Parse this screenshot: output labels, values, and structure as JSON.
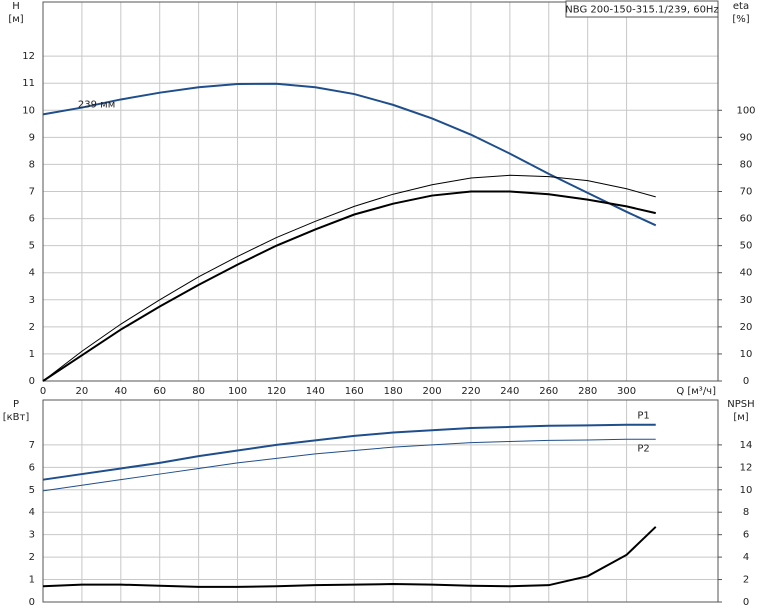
{
  "chart_data": [
    {
      "type": "line",
      "title": "NBG 200-150-315.1/239, 60Hz",
      "ylabel": [
        "H",
        "[м]"
      ],
      "y2label": [
        "eta",
        "[%]"
      ],
      "xlabel": "Q [м³/ч]",
      "x": [
        0,
        20,
        40,
        60,
        80,
        100,
        120,
        140,
        160,
        180,
        200,
        220,
        240,
        260,
        280,
        300,
        315
      ],
      "xlim": [
        0,
        347
      ],
      "xticks": [
        0,
        20,
        40,
        60,
        80,
        100,
        120,
        140,
        160,
        180,
        200,
        220,
        240,
        260,
        280,
        300
      ],
      "ylim": [
        0,
        14
      ],
      "yticks": [
        0,
        1,
        2,
        3,
        4,
        5,
        6,
        7,
        8,
        9,
        10,
        11,
        12
      ],
      "y2lim": [
        0,
        140
      ],
      "y2ticks": [
        0,
        10,
        20,
        30,
        40,
        50,
        60,
        70,
        80,
        90,
        100
      ],
      "grid": true,
      "series": [
        {
          "name": "239 мм",
          "color": "#1f4e8c",
          "line_width": 2,
          "values": [
            9.85,
            10.1,
            10.4,
            10.65,
            10.85,
            10.97,
            10.98,
            10.85,
            10.6,
            10.2,
            9.7,
            9.1,
            8.4,
            7.65,
            6.95,
            6.25,
            5.75
          ]
        },
        {
          "color": "#000000",
          "line_width": 1,
          "axis": "y2",
          "values": [
            0,
            11,
            21,
            30,
            38.5,
            46,
            53,
            59,
            64.5,
            69,
            72.5,
            75,
            76,
            75.5,
            74,
            71,
            68
          ]
        },
        {
          "color": "#000000",
          "line_width": 2,
          "axis": "y2",
          "values": [
            0,
            9.5,
            19,
            27.5,
            35.5,
            43,
            50,
            56,
            61.5,
            65.5,
            68.5,
            70,
            70,
            69,
            67,
            64.5,
            62
          ]
        }
      ]
    },
    {
      "type": "line",
      "ylabel": [
        "P",
        "[кВт]"
      ],
      "y2label": [
        "NPSH",
        "[м]"
      ],
      "x": [
        0,
        20,
        40,
        60,
        80,
        100,
        120,
        140,
        160,
        180,
        200,
        220,
        240,
        260,
        280,
        300,
        315
      ],
      "xlim": [
        0,
        347
      ],
      "ylim": [
        0,
        9
      ],
      "yticks": [
        0,
        1,
        2,
        3,
        4,
        5,
        6,
        7
      ],
      "y2lim": [
        0,
        18
      ],
      "y2ticks": [
        0,
        2,
        4,
        6,
        8,
        10,
        12,
        14
      ],
      "grid": true,
      "series": [
        {
          "name": "P1",
          "color": "#1f4e8c",
          "line_width": 2,
          "values": [
            5.45,
            5.7,
            5.95,
            6.2,
            6.5,
            6.75,
            7.0,
            7.2,
            7.4,
            7.55,
            7.65,
            7.75,
            7.8,
            7.85,
            7.87,
            7.9,
            7.9
          ]
        },
        {
          "name": "P2",
          "color": "#1f4e8c",
          "line_width": 1,
          "values": [
            4.95,
            5.2,
            5.45,
            5.7,
            5.95,
            6.2,
            6.4,
            6.6,
            6.75,
            6.9,
            7.0,
            7.1,
            7.15,
            7.2,
            7.22,
            7.25,
            7.25
          ]
        },
        {
          "color": "#000000",
          "line_width": 2,
          "axis": "y2",
          "values": [
            1.4,
            1.55,
            1.55,
            1.45,
            1.35,
            1.35,
            1.4,
            1.5,
            1.55,
            1.6,
            1.55,
            1.45,
            1.4,
            1.5,
            2.3,
            4.2,
            6.7
          ]
        }
      ]
    }
  ]
}
